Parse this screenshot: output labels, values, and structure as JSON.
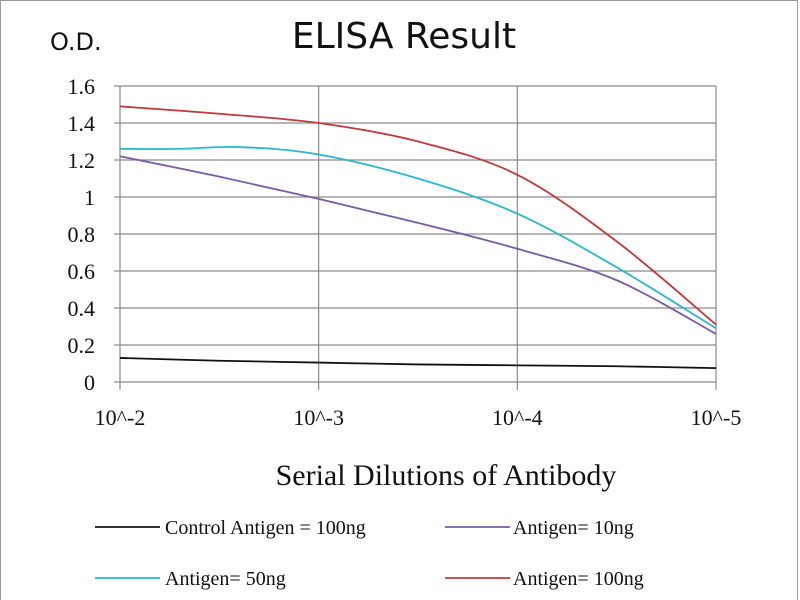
{
  "chart_data": {
    "type": "line",
    "title": "ELISA Result",
    "ylabel": "O.D.",
    "xlabel": "Serial Dilutions  of Antibody",
    "categories": [
      "10^-2",
      "10^-3",
      "10^-4",
      "10^-5"
    ],
    "ylim": [
      0,
      1.6
    ],
    "yticks": [
      "0",
      "0.2",
      "0.4",
      "0.6",
      "0.8",
      "1",
      "1.2",
      "1.4",
      "1.6"
    ],
    "grid": true,
    "legend_position": "bottom",
    "series": [
      {
        "name": "Control Antigen = 100ng",
        "color": "#111111",
        "points": [
          [
            0,
            0.13
          ],
          [
            0.5,
            0.115
          ],
          [
            1,
            0.105
          ],
          [
            1.5,
            0.095
          ],
          [
            2,
            0.09
          ],
          [
            2.5,
            0.085
          ],
          [
            3,
            0.075
          ]
        ]
      },
      {
        "name": "Antigen= 10ng",
        "color": "#7b5aa6",
        "points": [
          [
            0,
            1.22
          ],
          [
            0.5,
            1.11
          ],
          [
            1,
            0.99
          ],
          [
            1.5,
            0.86
          ],
          [
            2,
            0.72
          ],
          [
            2.5,
            0.55
          ],
          [
            3,
            0.26
          ]
        ]
      },
      {
        "name": "Antigen= 50ng",
        "color": "#2bb7d0",
        "points": [
          [
            0,
            1.26
          ],
          [
            0.3,
            1.26
          ],
          [
            0.6,
            1.27
          ],
          [
            1,
            1.23
          ],
          [
            1.5,
            1.1
          ],
          [
            2,
            0.91
          ],
          [
            2.5,
            0.62
          ],
          [
            3,
            0.29
          ]
        ]
      },
      {
        "name": "Antigen= 100ng",
        "color": "#c0393b",
        "points": [
          [
            0,
            1.49
          ],
          [
            0.5,
            1.45
          ],
          [
            1,
            1.4
          ],
          [
            1.5,
            1.3
          ],
          [
            2,
            1.12
          ],
          [
            2.5,
            0.76
          ],
          [
            3,
            0.31
          ]
        ]
      }
    ]
  }
}
